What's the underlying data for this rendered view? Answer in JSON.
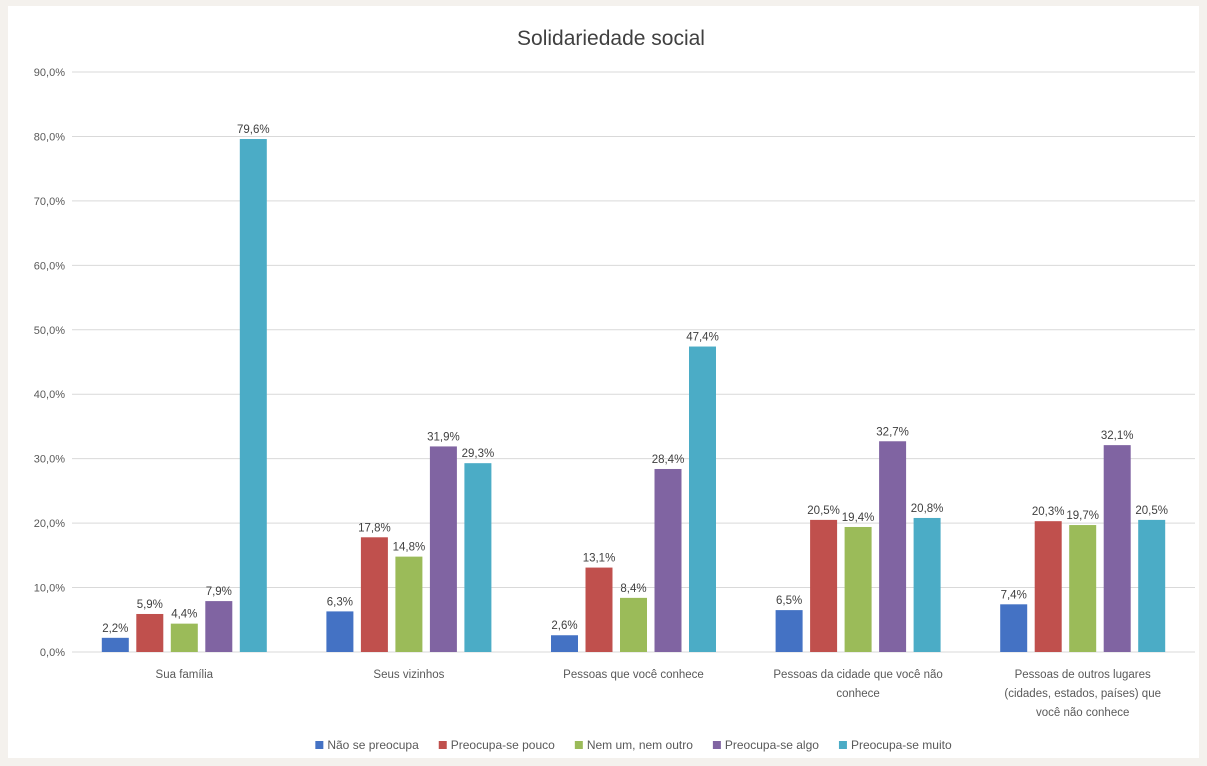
{
  "chart_data": {
    "type": "bar",
    "title": "Solidariedade social",
    "xlabel": "",
    "ylabel": "",
    "ylim": [
      0,
      90
    ],
    "yticks": [
      "0,0%",
      "10,0%",
      "20,0%",
      "30,0%",
      "40,0%",
      "50,0%",
      "60,0%",
      "70,0%",
      "80,0%",
      "90,0%"
    ],
    "grid": true,
    "legend_position": "bottom",
    "categories": [
      [
        "Sua família"
      ],
      [
        "Seus vizinhos"
      ],
      [
        "Pessoas que você conhece"
      ],
      [
        "Pessoas da cidade que você não",
        "conhece"
      ],
      [
        "Pessoas de outros lugares",
        "(cidades, estados, países) que",
        "você não conhece"
      ]
    ],
    "series": [
      {
        "name": "Não se preocupa",
        "color": "#4472c4",
        "values": [
          2.2,
          6.3,
          2.6,
          6.5,
          7.4
        ],
        "labels": [
          "2,2%",
          "6,3%",
          "2,6%",
          "6,5%",
          "7,4%"
        ]
      },
      {
        "name": "Preocupa-se pouco",
        "color": "#c0504d",
        "values": [
          5.9,
          17.8,
          13.1,
          20.5,
          20.3
        ],
        "labels": [
          "5,9%",
          "17,8%",
          "13,1%",
          "20,5%",
          "20,3%"
        ]
      },
      {
        "name": "Nem um, nem outro",
        "color": "#9bbb59",
        "values": [
          4.4,
          14.8,
          8.4,
          19.4,
          19.7
        ],
        "labels": [
          "4,4%",
          "14,8%",
          "8,4%",
          "19,4%",
          "19,7%"
        ]
      },
      {
        "name": "Preocupa-se algo",
        "color": "#8064a2",
        "values": [
          7.9,
          31.9,
          28.4,
          32.7,
          32.1
        ],
        "labels": [
          "7,9%",
          "31,9%",
          "28,4%",
          "32,7%",
          "32,1%"
        ]
      },
      {
        "name": "Preocupa-se muito",
        "color": "#4bacc6",
        "values": [
          79.6,
          29.3,
          47.4,
          20.8,
          20.5
        ],
        "labels": [
          "79,6%",
          "29,3%",
          "47,4%",
          "20,8%",
          "20,5%"
        ]
      }
    ]
  }
}
